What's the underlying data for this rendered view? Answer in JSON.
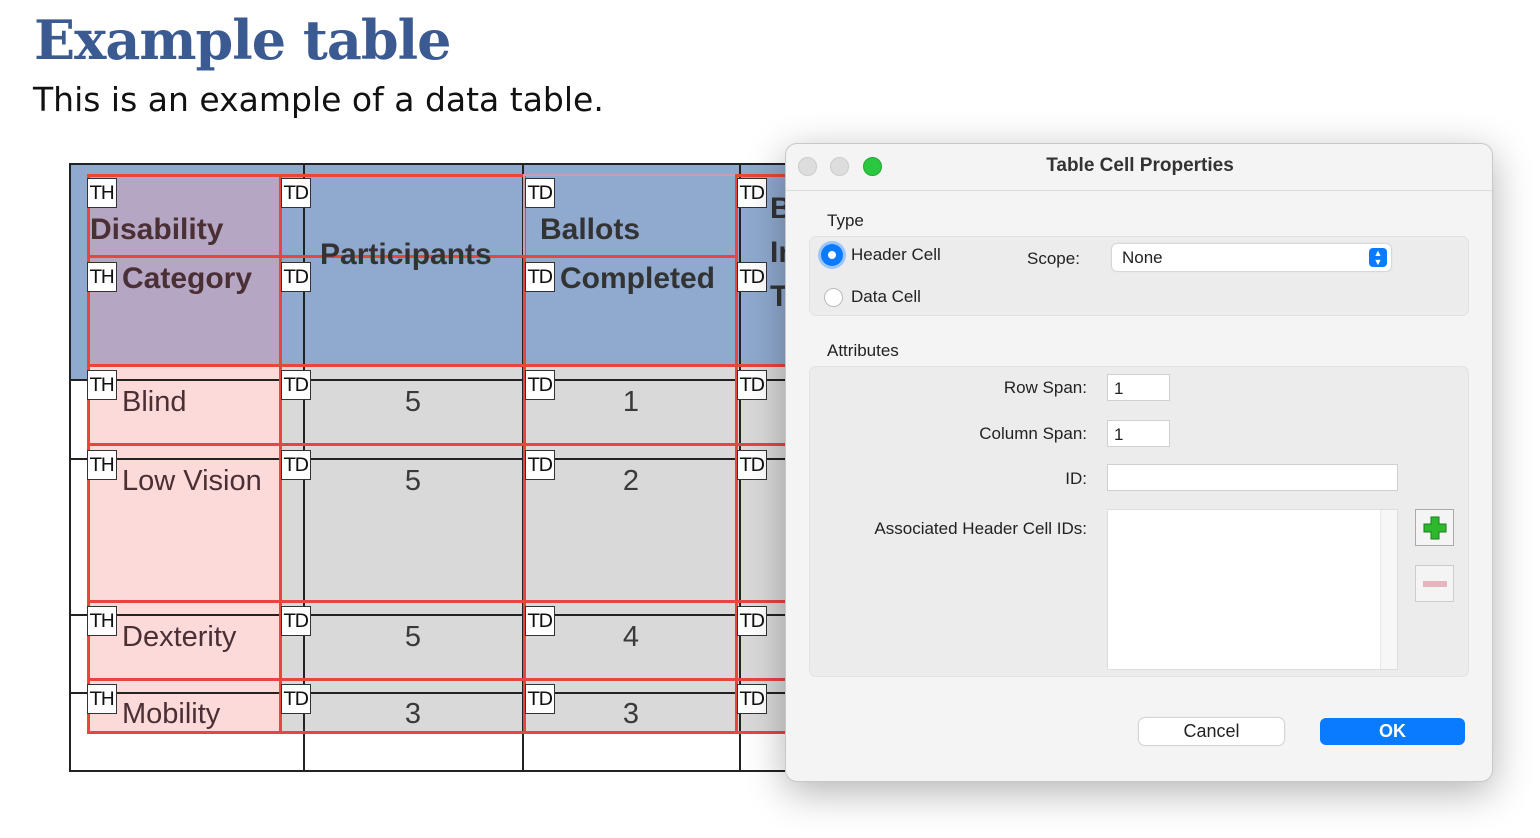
{
  "document": {
    "title": "Example table",
    "subtitle": "This is an example of a data table.",
    "headers": {
      "col1": [
        "Disability",
        "Category"
      ],
      "col2": "Participants",
      "col3": [
        "Ballots",
        "Completed"
      ],
      "col4": [
        "Ba",
        "In",
        "Te"
      ]
    },
    "rows": [
      {
        "label": "Blind",
        "participants": "5",
        "completed": "1"
      },
      {
        "label": "Low Vision",
        "participants": "5",
        "completed": "2"
      },
      {
        "label": "Dexterity",
        "participants": "5",
        "completed": "4"
      },
      {
        "label": "Mobility",
        "participants": "3",
        "completed": "3"
      }
    ],
    "tags": {
      "th": "TH",
      "td": "TD"
    },
    "colors": {
      "header_bg": "#8fa6c6",
      "th_overlay": "#b5a6c4",
      "body_th": "#fddada",
      "body_td": "#d9d9d9",
      "outline": "#e8453c"
    }
  },
  "dialog": {
    "title": "Table Cell Properties",
    "type_label": "Type",
    "header_cell": "Header Cell",
    "data_cell": "Data Cell",
    "selected_type": "Header Cell",
    "scope_label": "Scope:",
    "scope_value": "None",
    "attributes_label": "Attributes",
    "row_span_label": "Row Span:",
    "row_span": "1",
    "col_span_label": "Column Span:",
    "col_span": "1",
    "id_label": "ID:",
    "id_value": "",
    "assoc_label": "Associated Header Cell IDs:",
    "add_icon": "plus-icon",
    "remove_icon": "minus-icon",
    "cancel": "Cancel",
    "ok": "OK",
    "accent": "#0a7aff"
  }
}
